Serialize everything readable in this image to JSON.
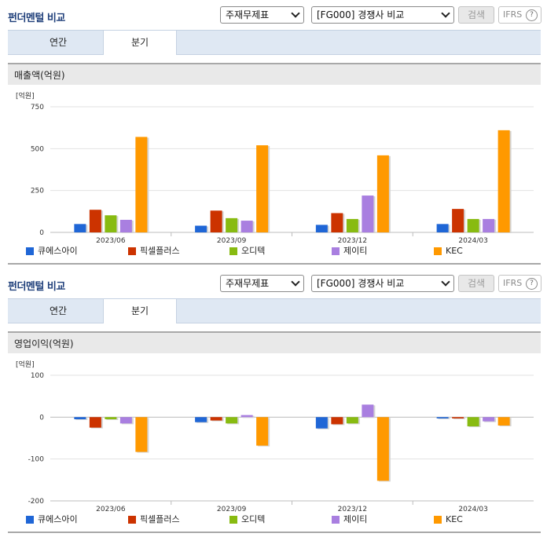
{
  "panels": [
    {
      "title": "펀더멘털 비교",
      "select_type": "주재무제표",
      "select_compare": "[FG000] 경쟁사 비교",
      "search_label": "검색",
      "ifrs_label": "IFRS",
      "help_glyph": "?",
      "tabs": [
        {
          "label": "연간"
        },
        {
          "label": "분기",
          "active": true
        }
      ],
      "section_title": "매출액(억원)"
    },
    {
      "title": "펀더멘털 비교",
      "select_type": "주재무제표",
      "select_compare": "[FG000] 경쟁사 비교",
      "search_label": "검색",
      "ifrs_label": "IFRS",
      "help_glyph": "?",
      "tabs": [
        {
          "label": "연간"
        },
        {
          "label": "분기",
          "active": true
        }
      ],
      "section_title": "영업이익(억원)"
    }
  ],
  "colors": {
    "큐에스아이": "#1f66d6",
    "픽셀플러스": "#cc3300",
    "오디텍": "#88bb11",
    "제이티": "#a97fe0",
    "KEC": "#ff9900"
  },
  "chart_data": [
    {
      "type": "bar",
      "unit_label": "[억원]",
      "categories": [
        "2023/06",
        "2023/09",
        "2023/12",
        "2024/03"
      ],
      "ylim": [
        0,
        750
      ],
      "yticks": [
        "750",
        "500",
        "250",
        "0"
      ],
      "ytick_values": [
        750,
        500,
        250,
        0
      ],
      "grid": true,
      "legend": "bottom",
      "series": [
        {
          "name": "큐에스아이",
          "values": [
            50,
            40,
            45,
            50
          ]
        },
        {
          "name": "픽셀플러스",
          "values": [
            135,
            130,
            115,
            140
          ]
        },
        {
          "name": "오디텍",
          "values": [
            102,
            85,
            80,
            80
          ]
        },
        {
          "name": "제이티",
          "values": [
            75,
            70,
            220,
            80
          ]
        },
        {
          "name": "KEC",
          "values": [
            570,
            520,
            460,
            610
          ]
        }
      ]
    },
    {
      "type": "bar",
      "unit_label": "[억원]",
      "categories": [
        "2023/06",
        "2023/09",
        "2023/12",
        "2024/03"
      ],
      "ylim": [
        -200,
        100
      ],
      "yticks": [
        "100",
        "0",
        "-100",
        "-200"
      ],
      "ytick_values": [
        100,
        0,
        -100,
        -200
      ],
      "grid": true,
      "legend": "bottom",
      "series": [
        {
          "name": "큐에스아이",
          "values": [
            -5,
            -12,
            -27,
            -3
          ]
        },
        {
          "name": "픽셀플러스",
          "values": [
            -25,
            -8,
            -17,
            -3
          ]
        },
        {
          "name": "오디텍",
          "values": [
            -5,
            -15,
            -15,
            -22
          ]
        },
        {
          "name": "제이티",
          "values": [
            -15,
            5,
            30,
            -10
          ]
        },
        {
          "name": "KEC",
          "values": [
            -83,
            -68,
            -152,
            -20
          ]
        }
      ]
    }
  ]
}
